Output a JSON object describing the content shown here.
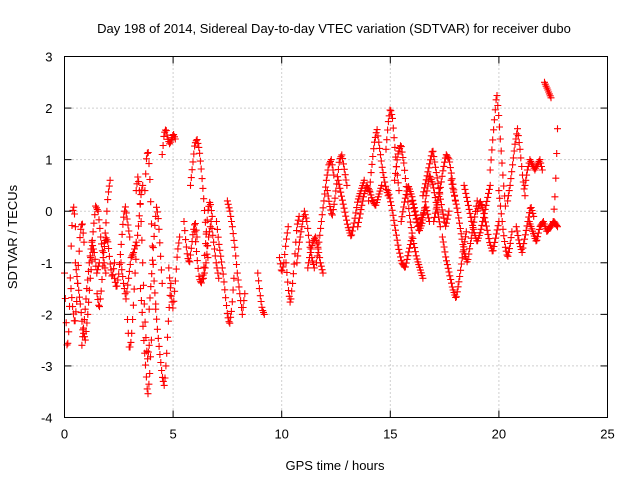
{
  "chart_data": {
    "type": "scatter",
    "title": "Day 198 of 2014, Sidereal Day-to-day VTEC variation (SDTVAR) for receiver dubo",
    "xlabel": "GPS time / hours",
    "ylabel": "SDTVAR / TECUs",
    "xlim": [
      0,
      25
    ],
    "ylim": [
      -4,
      3
    ],
    "xticks": [
      0,
      5,
      10,
      15,
      20,
      25
    ],
    "yticks": [
      -4,
      -3,
      -2,
      -1,
      0,
      1,
      2,
      3
    ],
    "grid": true,
    "marker": "+",
    "marker_color": "#ff0000",
    "series": [
      {
        "name": "SDTVAR",
        "trajectories": [
          {
            "t0": 0.0,
            "t1": 0.5,
            "y": [
              -1.2,
              -2.0,
              -2.7,
              -2.4,
              -1.6,
              -0.6,
              0.0,
              0.1,
              -0.3
            ]
          },
          {
            "t0": 0.3,
            "t1": 0.9,
            "y": [
              -1.5,
              -1.9,
              -2.2,
              -1.8,
              -1.0,
              -0.4,
              -0.2,
              -0.6
            ]
          },
          {
            "t0": 0.5,
            "t1": 1.3,
            "y": [
              -1.0,
              -1.4,
              -1.8,
              -2.3,
              -2.5,
              -2.0,
              -1.3,
              -0.8
            ]
          },
          {
            "t0": 0.8,
            "t1": 1.6,
            "y": [
              -2.6,
              -2.1,
              -1.5,
              -1.0,
              -0.6,
              -0.8,
              -1.2,
              -1.0
            ]
          },
          {
            "t0": 1.2,
            "t1": 1.9,
            "y": [
              -0.9,
              -0.4,
              0.1,
              0.0,
              -0.5,
              -0.9,
              -1.2
            ]
          },
          {
            "t0": 1.5,
            "t1": 2.1,
            "y": [
              -1.6,
              -1.9,
              -1.5,
              -0.8,
              -0.3,
              0.3,
              0.6
            ]
          },
          {
            "t0": 1.8,
            "t1": 2.3,
            "y": [
              -0.8,
              -0.5,
              -0.6,
              -1.0,
              -1.3,
              -1.0
            ]
          },
          {
            "t0": 2.3,
            "t1": 3.0,
            "y": [
              -1.3,
              -1.5,
              -1.2,
              -0.7,
              -0.2,
              0.1,
              -0.2,
              -0.5
            ]
          },
          {
            "t0": 2.6,
            "t1": 3.3,
            "y": [
              -1.0,
              -1.4,
              -1.7,
              -1.3,
              -0.9,
              -0.8,
              -0.6
            ]
          },
          {
            "t0": 2.9,
            "t1": 3.6,
            "y": [
              -2.1,
              -2.7,
              -2.5,
              -1.9,
              -1.2,
              -0.6,
              -0.2,
              0.3,
              0.5
            ]
          },
          {
            "t0": 3.3,
            "t1": 3.9,
            "y": [
              0.4,
              0.7,
              0.3,
              -0.5,
              -1.5,
              -2.3,
              -2.9,
              -2.6
            ]
          },
          {
            "t0": 3.5,
            "t1": 4.0,
            "y": [
              -1.5,
              -2.0,
              -2.6,
              -3.1,
              -3.6,
              -3.2,
              -2.5
            ]
          },
          {
            "t0": 3.7,
            "t1": 4.2,
            "y": [
              0.4,
              1.0,
              1.2,
              0.8,
              0.0,
              -0.8,
              -1.4,
              -1.8
            ]
          },
          {
            "t0": 3.9,
            "t1": 4.5,
            "y": [
              -1.9,
              -1.4,
              -0.8,
              -0.3,
              0.1,
              -0.2,
              -0.8,
              -1.4
            ]
          },
          {
            "t0": 4.2,
            "t1": 4.9,
            "y": [
              -1.9,
              -2.4,
              -2.8,
              -3.2,
              -3.4,
              -2.8,
              -2.0,
              -1.4
            ]
          },
          {
            "t0": 4.5,
            "t1": 5.1,
            "y": [
              1.1,
              1.5,
              1.6,
              1.4,
              1.3,
              1.4,
              1.5,
              1.4
            ]
          },
          {
            "t0": 4.8,
            "t1": 5.3,
            "y": [
              -1.1,
              -1.6,
              -1.9,
              -1.4,
              -0.8,
              -0.5
            ]
          },
          {
            "t0": 5.5,
            "t1": 6.1,
            "y": [
              -0.2,
              -0.6,
              -0.9,
              -1.0,
              -0.7,
              -0.4,
              -0.2,
              -0.5
            ]
          },
          {
            "t0": 5.8,
            "t1": 6.6,
            "y": [
              0.5,
              0.9,
              1.3,
              1.4,
              1.2,
              0.8,
              0.3,
              -0.3,
              -0.9
            ]
          },
          {
            "t0": 6.0,
            "t1": 6.8,
            "y": [
              -0.4,
              -0.9,
              -1.3,
              -1.4,
              -1.2,
              -0.6,
              0.0,
              0.2,
              -0.1
            ]
          },
          {
            "t0": 6.4,
            "t1": 7.1,
            "y": [
              -1.3,
              -1.0,
              -0.5,
              -0.2,
              -0.6,
              -1.0,
              -1.3
            ]
          },
          {
            "t0": 7.0,
            "t1": 7.8,
            "y": [
              -0.2,
              -0.6,
              -0.9,
              -1.2,
              -1.6,
              -2.0,
              -2.2,
              -1.9,
              -1.3
            ]
          },
          {
            "t0": 7.5,
            "t1": 8.3,
            "y": [
              0.2,
              0.0,
              -0.3,
              -0.7,
              -1.2,
              -1.6,
              -2.0,
              -1.6
            ]
          },
          {
            "t0": 8.9,
            "t1": 9.2,
            "y": [
              -1.2,
              -1.6,
              -1.9,
              -2.0
            ]
          },
          {
            "t0": 9.9,
            "t1": 10.3,
            "y": [
              -0.9,
              -1.2,
              -1.0,
              -0.6,
              -0.3
            ]
          },
          {
            "t0": 10.2,
            "t1": 10.8,
            "y": [
              -1.0,
              -1.5,
              -1.8,
              -1.4,
              -0.9,
              -0.3,
              -0.1
            ]
          },
          {
            "t0": 10.7,
            "t1": 11.5,
            "y": [
              -1.0,
              -0.6,
              -0.3,
              0.0,
              -0.2,
              -0.6,
              -0.9,
              -1.1
            ]
          },
          {
            "t0": 11.2,
            "t1": 11.9,
            "y": [
              -1.1,
              -0.8,
              -0.6,
              -0.5,
              -0.7,
              -1.0,
              -1.2
            ]
          },
          {
            "t0": 11.6,
            "t1": 12.4,
            "y": [
              -1.0,
              -0.6,
              -0.2,
              0.2,
              0.6,
              0.9,
              1.0,
              0.7
            ]
          },
          {
            "t0": 12.1,
            "t1": 13.0,
            "y": [
              0.4,
              0.1,
              -0.1,
              0.2,
              0.6,
              1.0,
              1.1,
              0.8,
              0.5
            ]
          },
          {
            "t0": 12.6,
            "t1": 13.8,
            "y": [
              0.6,
              0.3,
              0.0,
              -0.3,
              -0.5,
              -0.2,
              0.2,
              0.4,
              0.6
            ]
          },
          {
            "t0": 13.5,
            "t1": 14.6,
            "y": [
              -0.3,
              0.0,
              0.3,
              0.5,
              0.4,
              0.2,
              0.1,
              0.3,
              0.5
            ]
          },
          {
            "t0": 14.0,
            "t1": 14.9,
            "y": [
              0.2,
              0.8,
              1.3,
              1.6,
              1.2,
              0.8,
              0.5,
              0.3
            ]
          },
          {
            "t0": 14.8,
            "t1": 15.4,
            "y": [
              1.2,
              1.7,
              2.0,
              1.8,
              1.3,
              0.8,
              0.4
            ]
          },
          {
            "t0": 14.9,
            "t1": 16.0,
            "y": [
              0.4,
              0.1,
              -0.3,
              -0.7,
              -1.0,
              -1.1,
              -0.8,
              -0.5
            ]
          },
          {
            "t0": 15.2,
            "t1": 16.5,
            "y": [
              0.6,
              1.1,
              1.3,
              0.9,
              0.3,
              -0.2,
              -0.6,
              -0.9,
              -1.1,
              -1.3
            ]
          },
          {
            "t0": 15.5,
            "t1": 16.8,
            "y": [
              -0.2,
              0.2,
              0.5,
              0.3,
              0.0,
              -0.3,
              -0.1,
              0.1,
              -0.2
            ]
          },
          {
            "t0": 16.0,
            "t1": 17.3,
            "y": [
              0.2,
              -0.1,
              -0.4,
              -0.2,
              0.3,
              0.7,
              0.5,
              0.1,
              -0.3
            ]
          },
          {
            "t0": 16.5,
            "t1": 17.7,
            "y": [
              0.3,
              0.6,
              0.9,
              1.2,
              0.8,
              0.4,
              0.0,
              -0.3,
              0.0
            ]
          },
          {
            "t0": 17.0,
            "t1": 18.0,
            "y": [
              -0.2,
              0.1,
              0.4,
              0.8,
              1.1,
              1.0,
              0.6,
              0.2
            ]
          },
          {
            "t0": 17.4,
            "t1": 18.5,
            "y": [
              -0.5,
              -0.9,
              -1.2,
              -1.5,
              -1.7,
              -1.3,
              -0.8,
              -0.4
            ]
          },
          {
            "t0": 17.8,
            "t1": 19.0,
            "y": [
              0.6,
              0.3,
              0.0,
              -0.4,
              -0.8,
              -1.0,
              -0.6,
              -0.2,
              0.2
            ]
          },
          {
            "t0": 18.4,
            "t1": 19.6,
            "y": [
              0.5,
              0.2,
              -0.1,
              -0.4,
              -0.6,
              -0.4,
              -0.1,
              0.2,
              0.5
            ]
          },
          {
            "t0": 19.0,
            "t1": 20.0,
            "y": [
              0.0,
              0.2,
              0.0,
              -0.3,
              -0.6,
              -0.8,
              -0.5,
              -0.2
            ]
          },
          {
            "t0": 19.6,
            "t1": 20.3,
            "y": [
              0.8,
              1.3,
              1.8,
              2.3,
              1.8,
              1.2,
              0.6,
              0.1
            ]
          },
          {
            "t0": 20.0,
            "t1": 20.6,
            "y": [
              0.4,
              0.0,
              -0.4,
              -0.7,
              -0.9,
              -0.7,
              -0.4
            ]
          },
          {
            "t0": 20.4,
            "t1": 21.2,
            "y": [
              0.2,
              0.5,
              0.9,
              1.3,
              1.6,
              1.2,
              0.7,
              0.3
            ]
          },
          {
            "t0": 20.8,
            "t1": 21.6,
            "y": [
              -0.3,
              -0.6,
              -0.8,
              -0.5,
              -0.2,
              0.1,
              -0.1
            ]
          },
          {
            "t0": 21.2,
            "t1": 22.0,
            "y": [
              0.5,
              0.8,
              1.0,
              0.9,
              0.8,
              0.9,
              1.0,
              0.8
            ]
          },
          {
            "t0": 21.4,
            "t1": 22.7,
            "y": [
              -0.2,
              -0.4,
              -0.6,
              -0.3,
              -0.2,
              -0.4,
              -0.3,
              -0.2,
              -0.3
            ]
          },
          {
            "t0": 22.1,
            "t1": 22.4,
            "y": [
              2.5,
              2.4,
              2.3,
              2.2
            ]
          },
          {
            "t0": 22.5,
            "t1": 22.7,
            "y": [
              -0.2,
              0.4,
              1.6
            ]
          }
        ]
      }
    ]
  }
}
